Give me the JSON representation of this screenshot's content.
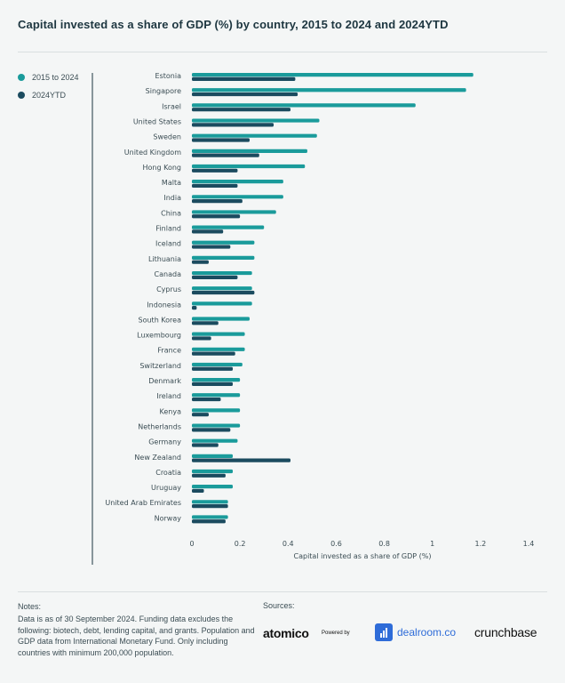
{
  "title": "Capital invested as a share of GDP (%) by country, 2015 to 2024 and 2024YTD",
  "legend": [
    {
      "label": "2015 to 2024",
      "color": "#1a9b9b"
    },
    {
      "label": "2024YTD",
      "color": "#1b4b5f"
    }
  ],
  "chart_data": {
    "type": "bar",
    "orientation": "horizontal",
    "xlabel": "Capital invested as a share of GDP (%)",
    "ylabel": "",
    "xlim": [
      0,
      1.4
    ],
    "xticks": [
      "0",
      "0.2",
      "0.4",
      "0.6",
      "0.8",
      "1",
      "1.2",
      "1.4"
    ],
    "grid": false,
    "legend_position": "top-left",
    "categories": [
      "Estonia",
      "Singapore",
      "Israel",
      "United States",
      "Sweden",
      "United Kingdom",
      "Hong Kong",
      "Malta",
      "India",
      "China",
      "Finland",
      "Iceland",
      "Lithuania",
      "Canada",
      "Cyprus",
      "Indonesia",
      "South Korea",
      "Luxembourg",
      "France",
      "Switzerland",
      "Denmark",
      "Ireland",
      "Kenya",
      "Netherlands",
      "Germany",
      "New Zealand",
      "Croatia",
      "Uruguay",
      "United Arab Emirates",
      "Norway"
    ],
    "series": [
      {
        "name": "2015 to 2024",
        "color": "#1a9b9b",
        "values": [
          1.17,
          1.14,
          0.93,
          0.53,
          0.52,
          0.48,
          0.47,
          0.38,
          0.38,
          0.35,
          0.3,
          0.26,
          0.26,
          0.25,
          0.25,
          0.25,
          0.24,
          0.22,
          0.22,
          0.21,
          0.2,
          0.2,
          0.2,
          0.2,
          0.19,
          0.17,
          0.17,
          0.17,
          0.15,
          0.15
        ]
      },
      {
        "name": "2024YTD",
        "color": "#1b4b5f",
        "values": [
          0.43,
          0.44,
          0.41,
          0.34,
          0.24,
          0.28,
          0.19,
          0.19,
          0.21,
          0.2,
          0.13,
          0.16,
          0.07,
          0.19,
          0.26,
          0.02,
          0.11,
          0.08,
          0.18,
          0.17,
          0.17,
          0.12,
          0.07,
          0.16,
          0.11,
          0.41,
          0.14,
          0.05,
          0.15,
          0.14
        ]
      }
    ]
  },
  "notes": {
    "title": "Notes:",
    "text": "Data is as of 30 September 2024. Funding data excludes the following: biotech, debt, lending capital, and grants. Population and GDP data from International Monetary Fund. Only including countries with minimum 200,000 population."
  },
  "sources": {
    "title": "Sources:",
    "atomico": "atomico",
    "powered_by": "Powered by",
    "dealroom": "dealroom.co",
    "crunchbase": "crunchbase"
  }
}
